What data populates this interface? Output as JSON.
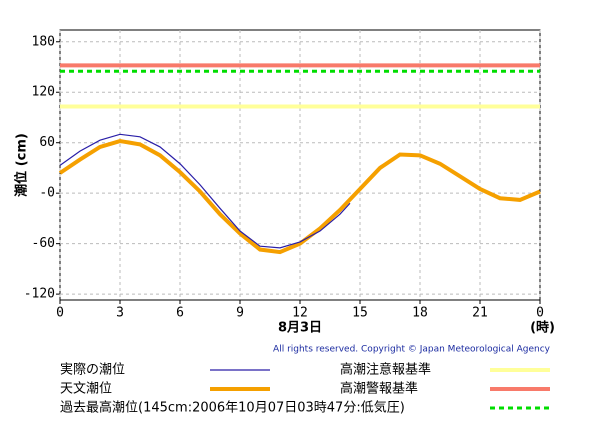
{
  "chart_data": {
    "type": "line",
    "y_label": "潮位 (cm)",
    "x_label": "8月3日",
    "x_unit_label": "(時)",
    "copyright": "All rights reserved. Copyright © Japan Meteorological Agency",
    "xlim": [
      0,
      24
    ],
    "ylim": [
      -127,
      194
    ],
    "xticks": [
      0,
      3,
      6,
      9,
      12,
      15,
      18,
      21,
      {
        "value": 24,
        "label": "0"
      }
    ],
    "yticks": [
      -120,
      -60,
      {
        "value": 0,
        "label": "-0"
      },
      60,
      120,
      180
    ],
    "grid": true,
    "series": [
      {
        "name": "実際の潮位",
        "color": "#2a1fa8",
        "x": [
          0,
          1,
          2,
          3,
          4,
          5,
          6,
          7,
          8,
          9,
          10,
          11,
          12,
          13,
          14,
          14.5
        ],
        "values": [
          33,
          50,
          63,
          70,
          67,
          55,
          35,
          10,
          -18,
          -45,
          -63,
          -65,
          -58,
          -45,
          -25,
          -12
        ]
      },
      {
        "name": "天文潮位",
        "color": "#f5a000",
        "x": [
          0,
          1,
          2,
          3,
          4,
          5,
          6,
          7,
          8,
          9,
          10,
          11,
          12,
          13,
          14,
          15,
          16,
          17,
          18,
          19,
          20,
          21,
          22,
          23,
          24
        ],
        "values": [
          24,
          40,
          55,
          62,
          58,
          45,
          25,
          2,
          -25,
          -48,
          -67,
          -70,
          -60,
          -42,
          -20,
          5,
          30,
          46,
          45,
          35,
          20,
          5,
          -6,
          -8,
          2
        ]
      }
    ],
    "reference_lines": [
      {
        "name": "過去最高潮位(145cm:2006年10月07日03時47分:低気圧)",
        "value": 145,
        "color": "#00dd00",
        "dashed": true
      },
      {
        "name": "高潮注意報基準",
        "value": 103,
        "color": "#ffff99",
        "dashed": false
      },
      {
        "name": "高潮警報基準",
        "value": 152,
        "color": "#f87a6a",
        "dashed": false
      }
    ]
  }
}
